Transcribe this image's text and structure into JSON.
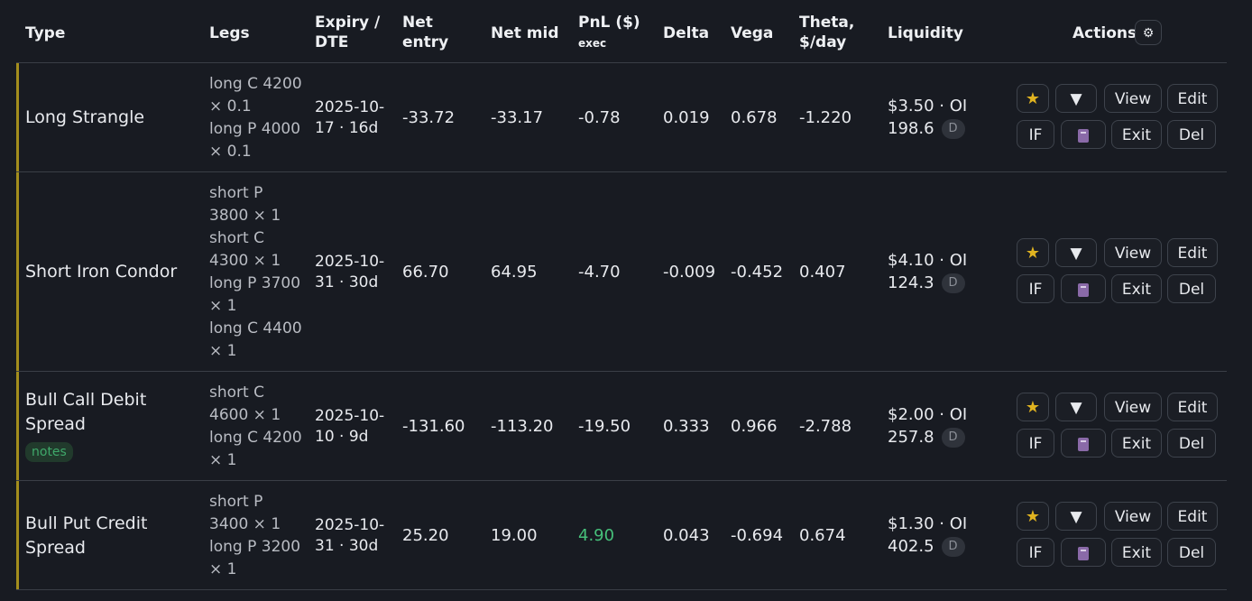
{
  "headers": {
    "type": "Type",
    "legs": "Legs",
    "expiry": "Expiry / DTE",
    "net_entry": "Net entry",
    "net_mid": "Net mid",
    "pnl": "PnL ($)",
    "pnl_sub": "exec",
    "delta": "Delta",
    "vega": "Vega",
    "theta": "Theta, $/day",
    "liquidity": "Liquidity",
    "actions": "Actions"
  },
  "buttons": {
    "view": "View",
    "edit": "Edit",
    "if": "IF",
    "exit": "Exit",
    "del": "Del",
    "star": "★",
    "dropdown": "▼",
    "gear": "⚙"
  },
  "liquidity_badge": "D",
  "rows": [
    {
      "type": "Long Strangle",
      "legs": [
        "long C 4200",
        "× 0.1",
        "long P 4000",
        "× 0.1"
      ],
      "expiry": "2025-10-17 · 16d",
      "net_entry": "-33.72",
      "net_mid": "-33.17",
      "pnl": "-0.78",
      "delta": "0.019",
      "vega": "0.678",
      "theta": "-1.220",
      "liq_line1": "$3.50 · OI",
      "liq_line2": "198.6"
    },
    {
      "type": "Short Iron Condor",
      "legs": [
        "short P",
        "3800 × 1",
        "short C",
        "4300 × 1",
        "long P 3700",
        "× 1",
        "long C 4400",
        "× 1"
      ],
      "expiry": "2025-10-31 · 30d",
      "net_entry": "66.70",
      "net_mid": "64.95",
      "pnl": "-4.70",
      "delta": "-0.009",
      "vega": "-0.452",
      "theta": "0.407",
      "liq_line1": "$4.10 · OI",
      "liq_line2": "124.3"
    },
    {
      "type": "Bull Call Debit Spread",
      "tag": "notes",
      "legs": [
        "short C",
        "4600 × 1",
        "long C 4200",
        "× 1"
      ],
      "expiry": "2025-10-10 · 9d",
      "net_entry": "-131.60",
      "net_mid": "-113.20",
      "pnl": "-19.50",
      "delta": "0.333",
      "vega": "0.966",
      "theta": "-2.788",
      "liq_line1": "$2.00 · OI",
      "liq_line2": "257.8"
    },
    {
      "type": "Bull Put Credit Spread",
      "legs": [
        "short P",
        "3400 × 1",
        "long P 3200",
        "× 1"
      ],
      "expiry": "2025-10-31 · 30d",
      "net_entry": "25.20",
      "net_mid": "19.00",
      "pnl": "4.90",
      "pnl_positive": true,
      "delta": "0.043",
      "vega": "-0.694",
      "theta": "0.674",
      "liq_line1": "$1.30 · OI",
      "liq_line2": "402.5"
    }
  ],
  "colors": {
    "accent": "#a38d1d",
    "positive": "#46c07a",
    "background": "#181b22"
  }
}
